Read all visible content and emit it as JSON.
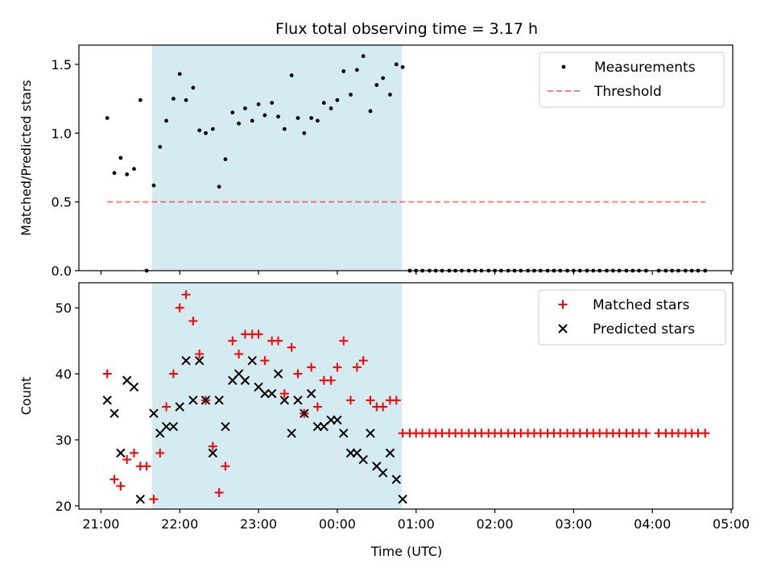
{
  "chart_data": {
    "type": "scatter",
    "title": "Flux total observing time = 3.17 h",
    "xlabel": "Time (UTC)",
    "x_ticks": [
      "21:00",
      "22:00",
      "23:00",
      "00:00",
      "01:00",
      "02:00",
      "03:00",
      "04:00",
      "05:00"
    ],
    "xlim_hours": [
      20.72,
      29.02
    ],
    "observing_window_hours": [
      21.65,
      24.82
    ],
    "colors": {
      "shade": "#add8e6",
      "measurement": "#000000",
      "threshold": "#ff0000",
      "matched": "#ff0000",
      "predicted": "#000000"
    },
    "panels": [
      {
        "name": "ratio",
        "ylabel": "Matched/Predicted stars",
        "ylim": [
          0,
          1.64
        ],
        "y_ticks": [
          0.0,
          0.5,
          1.0,
          1.5
        ],
        "y_tick_labels": [
          "0.0",
          "0.5",
          "1.0",
          "1.5"
        ],
        "legend": [
          "Measurements",
          "Threshold"
        ],
        "threshold": {
          "value": 0.5,
          "x_start": 21.08,
          "x_end": 28.67
        },
        "measurements": {
          "x": [
            21.08,
            21.17,
            21.25,
            21.33,
            21.42,
            21.5,
            21.58,
            21.67,
            21.75,
            21.83,
            21.92,
            22.0,
            22.08,
            22.17,
            22.25,
            22.33,
            22.42,
            22.5,
            22.58,
            22.67,
            22.75,
            22.83,
            22.92,
            23.0,
            23.08,
            23.17,
            23.25,
            23.33,
            23.42,
            23.5,
            23.58,
            23.67,
            23.75,
            23.83,
            23.92,
            24.0,
            24.08,
            24.17,
            24.25,
            24.33,
            24.42,
            24.5,
            24.58,
            24.67,
            24.75,
            24.83,
            24.92,
            25.0,
            25.08,
            25.17,
            25.25,
            25.33,
            25.42,
            25.5,
            25.58,
            25.67,
            25.75,
            25.83,
            25.92,
            26.0,
            26.08,
            26.17,
            26.25,
            26.33,
            26.42,
            26.5,
            26.58,
            26.67,
            26.75,
            26.83,
            26.92,
            27.0,
            27.08,
            27.17,
            27.25,
            27.33,
            27.42,
            27.5,
            27.58,
            27.67,
            27.75,
            27.83,
            27.92,
            28.08,
            28.17,
            28.25,
            28.33,
            28.42,
            28.5,
            28.58,
            28.67
          ],
          "y": [
            1.11,
            0.71,
            0.82,
            0.7,
            0.74,
            1.24,
            0.0,
            0.62,
            0.9,
            1.09,
            1.25,
            1.43,
            1.24,
            1.33,
            1.02,
            1.0,
            1.03,
            0.61,
            0.81,
            1.15,
            1.07,
            1.18,
            1.09,
            1.21,
            1.13,
            1.22,
            1.12,
            1.03,
            1.42,
            1.11,
            1.0,
            1.11,
            1.09,
            1.22,
            1.18,
            1.24,
            1.45,
            1.28,
            1.46,
            1.56,
            1.16,
            1.35,
            1.4,
            1.28,
            1.5,
            1.48,
            0.0,
            0.0,
            0.0,
            0.0,
            0.0,
            0.0,
            0.0,
            0.0,
            0.0,
            0.0,
            0.0,
            0.0,
            0.0,
            0.0,
            0.0,
            0.0,
            0.0,
            0.0,
            0.0,
            0.0,
            0.0,
            0.0,
            0.0,
            0.0,
            0.0,
            0.0,
            0.0,
            0.0,
            0.0,
            0.0,
            0.0,
            0.0,
            0.0,
            0.0,
            0.0,
            0.0,
            0.0,
            0.0,
            0.0,
            0.0,
            0.0,
            0.0,
            0.0,
            0.0,
            0.0
          ]
        }
      },
      {
        "name": "count",
        "ylabel": "Count",
        "ylim": [
          19.5,
          53.8
        ],
        "y_ticks": [
          20,
          30,
          40,
          50
        ],
        "y_tick_labels": [
          "20",
          "30",
          "40",
          "50"
        ],
        "legend": [
          "Matched stars",
          "Predicted stars"
        ],
        "matched": {
          "x": [
            21.08,
            21.17,
            21.25,
            21.33,
            21.42,
            21.5,
            21.58,
            21.67,
            21.75,
            21.83,
            21.92,
            22.0,
            22.08,
            22.17,
            22.25,
            22.33,
            22.42,
            22.5,
            22.58,
            22.67,
            22.75,
            22.83,
            22.92,
            23.0,
            23.08,
            23.17,
            23.25,
            23.33,
            23.42,
            23.5,
            23.58,
            23.67,
            23.75,
            23.83,
            23.92,
            24.0,
            24.08,
            24.17,
            24.25,
            24.33,
            24.42,
            24.5,
            24.58,
            24.67,
            24.75,
            24.83,
            24.92,
            25.0,
            25.08,
            25.17,
            25.25,
            25.33,
            25.42,
            25.5,
            25.58,
            25.67,
            25.75,
            25.83,
            25.92,
            26.0,
            26.08,
            26.17,
            26.25,
            26.33,
            26.42,
            26.5,
            26.58,
            26.67,
            26.75,
            26.83,
            26.92,
            27.0,
            27.08,
            27.17,
            27.25,
            27.33,
            27.42,
            27.5,
            27.58,
            27.67,
            27.75,
            27.83,
            27.92,
            28.08,
            28.17,
            28.25,
            28.33,
            28.42,
            28.5,
            28.58,
            28.67
          ],
          "y": [
            40,
            24,
            23,
            27,
            28,
            26,
            26,
            21,
            28,
            35,
            40,
            50,
            52,
            48,
            43,
            36,
            29,
            22,
            26,
            45,
            43,
            46,
            46,
            46,
            42,
            45,
            45,
            37,
            44,
            40,
            34,
            41,
            35,
            39,
            39,
            41,
            45,
            36,
            41,
            42,
            36,
            35,
            35,
            36,
            36,
            31,
            31,
            31,
            31,
            31,
            31,
            31,
            31,
            31,
            31,
            31,
            31,
            31,
            31,
            31,
            31,
            31,
            31,
            31,
            31,
            31,
            31,
            31,
            31,
            31,
            31,
            31,
            31,
            31,
            31,
            31,
            31,
            31,
            31,
            31,
            31,
            31,
            31,
            31,
            31,
            31,
            31,
            31,
            31,
            31,
            31
          ]
        },
        "predicted": {
          "x": [
            21.08,
            21.17,
            21.25,
            21.33,
            21.42,
            21.5,
            21.67,
            21.75,
            21.83,
            21.92,
            22.0,
            22.08,
            22.17,
            22.25,
            22.33,
            22.42,
            22.5,
            22.58,
            22.67,
            22.75,
            22.83,
            22.92,
            23.0,
            23.08,
            23.17,
            23.25,
            23.33,
            23.42,
            23.5,
            23.58,
            23.67,
            23.75,
            23.83,
            23.92,
            24.0,
            24.08,
            24.17,
            24.25,
            24.33,
            24.42,
            24.5,
            24.58,
            24.67,
            24.75,
            24.83
          ],
          "y": [
            36,
            34,
            28,
            39,
            38,
            21,
            34,
            31,
            32,
            32,
            35,
            42,
            36,
            42,
            36,
            28,
            36,
            32,
            39,
            40,
            39,
            42,
            38,
            37,
            37,
            40,
            36,
            31,
            36,
            34,
            37,
            32,
            32,
            33,
            33,
            31,
            28,
            28,
            27,
            31,
            26,
            25,
            28,
            24,
            21
          ]
        }
      }
    ]
  }
}
